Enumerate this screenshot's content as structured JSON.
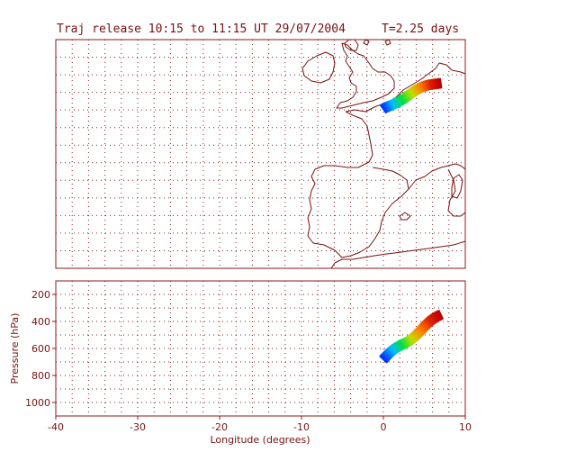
{
  "header": {
    "release": "Traj release 10:15 to 11:15 UT 29/07/2004",
    "duration": "T=2.25 days"
  },
  "chart_data": [
    {
      "type": "map",
      "panel": "trajectory-map",
      "grid": true,
      "xlim": [
        -40,
        10
      ],
      "trajectory_bundle": {
        "start": [
          0,
          53.2
        ],
        "end": [
          7.0,
          56.1
        ],
        "colors": [
          "#0030ff",
          "#00c0ff",
          "#00e040",
          "#c0e000",
          "#ff8000",
          "#e02000",
          "#c00000"
        ]
      }
    },
    {
      "type": "scatter",
      "panel": "pressure-longitude",
      "xlabel": "Longitude  (degrees)",
      "ylabel": "Pressure  (hPa)",
      "xlim": [
        -40,
        10
      ],
      "ylim": [
        1100,
        100
      ],
      "grid": true,
      "x_ticks": [
        "-40",
        "-30",
        "-20",
        "-10",
        "0",
        "10"
      ],
      "y_ticks": [
        "200",
        "400",
        "600",
        "800",
        "1000"
      ],
      "trajectory_bundle": {
        "start": [
          0,
          680
        ],
        "end": [
          7.0,
          350
        ],
        "colors": [
          "#0030ff",
          "#00c0ff",
          "#00e040",
          "#c0e000",
          "#ff8000",
          "#e02000",
          "#c00000"
        ]
      }
    }
  ]
}
